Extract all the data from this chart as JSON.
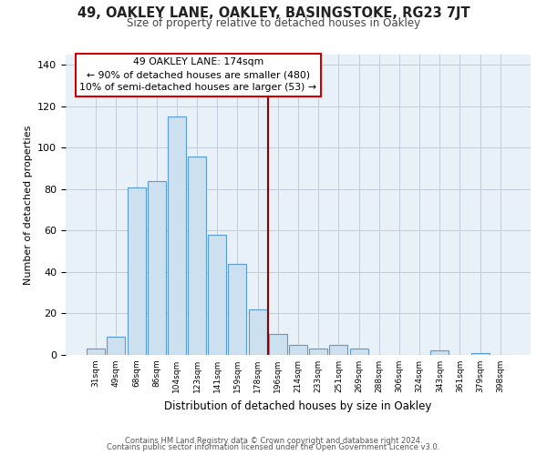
{
  "title1": "49, OAKLEY LANE, OAKLEY, BASINGSTOKE, RG23 7JT",
  "title2": "Size of property relative to detached houses in Oakley",
  "xlabel": "Distribution of detached houses by size in Oakley",
  "ylabel": "Number of detached properties",
  "bar_labels": [
    "31sqm",
    "49sqm",
    "68sqm",
    "86sqm",
    "104sqm",
    "123sqm",
    "141sqm",
    "159sqm",
    "178sqm",
    "196sqm",
    "214sqm",
    "233sqm",
    "251sqm",
    "269sqm",
    "288sqm",
    "306sqm",
    "324sqm",
    "343sqm",
    "361sqm",
    "379sqm",
    "398sqm"
  ],
  "bar_heights": [
    3,
    9,
    81,
    84,
    115,
    96,
    58,
    44,
    22,
    10,
    5,
    3,
    5,
    3,
    0,
    0,
    0,
    2,
    0,
    1,
    0
  ],
  "bar_color": "#cce0f0",
  "bar_edge_color": "#5b9bd5",
  "vline_x": 8.5,
  "vline_color": "#8b0000",
  "annotation_title": "49 OAKLEY LANE: 174sqm",
  "annotation_line1": "← 90% of detached houses are smaller (480)",
  "annotation_line2": "10% of semi-detached houses are larger (53) →",
  "box_edge_color": "#cc0000",
  "ylim": [
    0,
    145
  ],
  "yticks": [
    0,
    20,
    40,
    60,
    80,
    100,
    120,
    140
  ],
  "footer1": "Contains HM Land Registry data © Crown copyright and database right 2024.",
  "footer2": "Contains public sector information licensed under the Open Government Licence v3.0.",
  "bg_color": "#ffffff",
  "plot_bg_color": "#e8f0f8",
  "grid_color": "#c0ccd8"
}
